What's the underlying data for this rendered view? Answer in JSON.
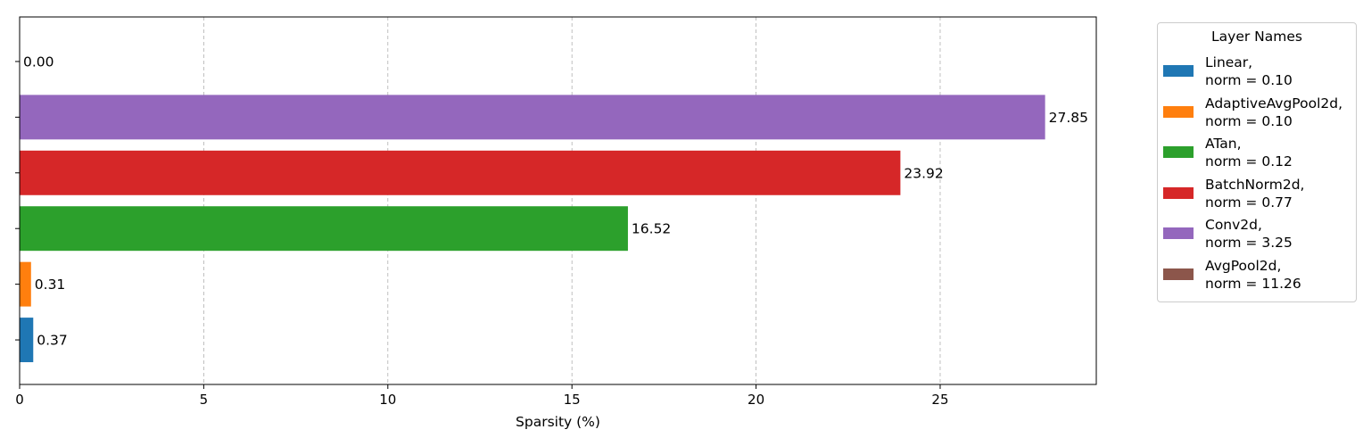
{
  "chart_data": {
    "type": "bar",
    "orientation": "horizontal",
    "bars": [
      {
        "value": 0.37,
        "label": "0.37",
        "color": "#1f77b4"
      },
      {
        "value": 0.31,
        "label": "0.31",
        "color": "#ff7f0e"
      },
      {
        "value": 16.52,
        "label": "16.52",
        "color": "#2ca02c"
      },
      {
        "value": 23.92,
        "label": "23.92",
        "color": "#d62728"
      },
      {
        "value": 27.85,
        "label": "27.85",
        "color": "#9467bd"
      },
      {
        "value": 0.0,
        "label": "0.00",
        "color": "#8c564b"
      }
    ],
    "xlabel": "Sparsity (%)",
    "xlim": [
      0,
      29.24
    ],
    "xticks": [
      0,
      5,
      10,
      15,
      20,
      25
    ],
    "xtick_labels": [
      "0",
      "5",
      "10",
      "15",
      "20",
      "25"
    ],
    "grid": "x-dashed",
    "legend": {
      "title": "Layer Names",
      "placement": "outside-right",
      "entries": [
        {
          "name": "Linear,",
          "norm": "norm = 0.10",
          "color": "#1f77b4"
        },
        {
          "name": "AdaptiveAvgPool2d,",
          "norm": "norm = 0.10",
          "color": "#ff7f0e"
        },
        {
          "name": "ATan,",
          "norm": "norm = 0.12",
          "color": "#2ca02c"
        },
        {
          "name": "BatchNorm2d,",
          "norm": "norm = 0.77",
          "color": "#d62728"
        },
        {
          "name": "Conv2d,",
          "norm": "norm = 3.25",
          "color": "#9467bd"
        },
        {
          "name": "AvgPool2d,",
          "norm": "norm = 11.26",
          "color": "#8c564b"
        }
      ]
    }
  }
}
